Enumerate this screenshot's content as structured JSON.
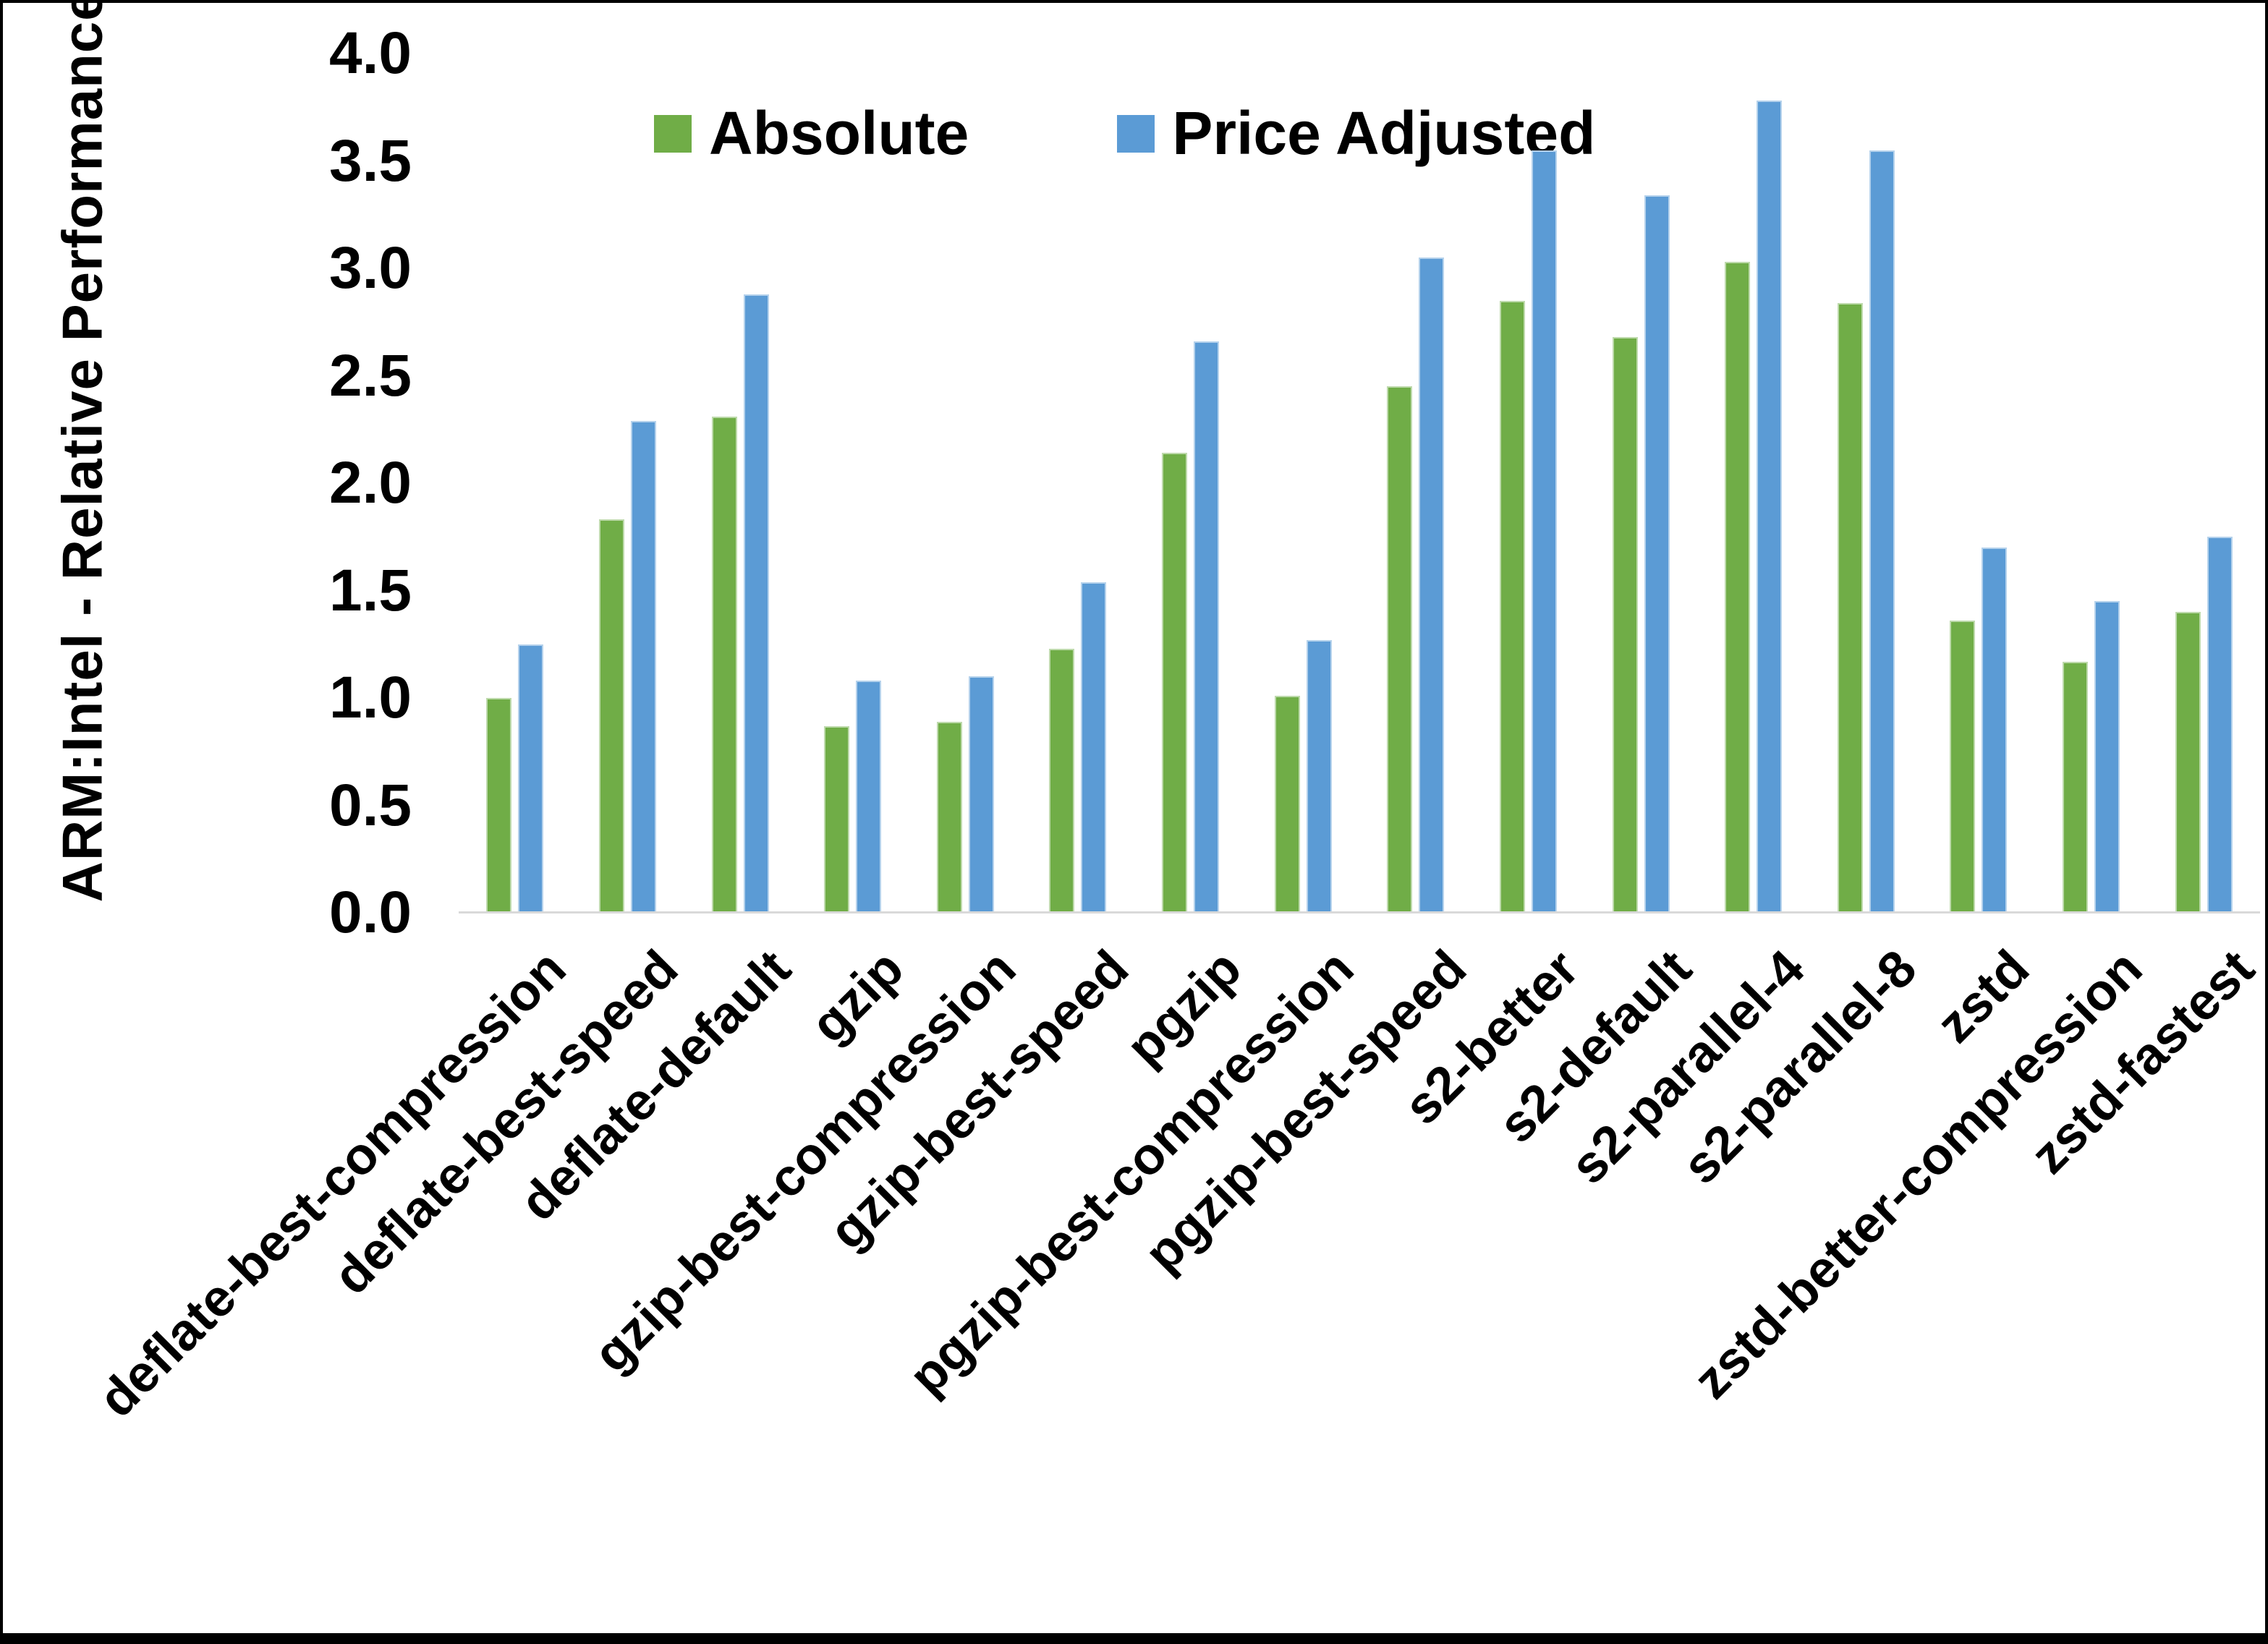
{
  "chart_data": {
    "type": "bar",
    "title": "",
    "ylabel": "ARM:Intel - Relative Performance",
    "xlabel": "",
    "ylim": [
      0.0,
      4.0
    ],
    "ytick_step": 0.5,
    "y_tick_labels": [
      "0.0",
      "0.5",
      "1.0",
      "1.5",
      "2.0",
      "2.5",
      "3.0",
      "3.5",
      "4.0"
    ],
    "grid": false,
    "legend_position": "top",
    "background_color": "#ffffff",
    "axis_line_color": "#d9d9d9",
    "categories": [
      "deflate-best-compression",
      "deflate-best-speed",
      "deflate-default",
      "gzip",
      "gzip-best-compression",
      "gzip-best-speed",
      "pgzip",
      "pgzip-best-compression",
      "pgzip-best-speed",
      "s2-better",
      "s2-default",
      "s2-parallel-4",
      "s2-parallel-8",
      "zstd",
      "zstd-better-compression",
      "zstd-fastest"
    ],
    "series": [
      {
        "name": "Absolute",
        "color": "#70AD47",
        "values": [
          1.0,
          1.83,
          2.31,
          0.87,
          0.89,
          1.23,
          2.14,
          1.01,
          2.45,
          2.85,
          2.68,
          3.03,
          2.84,
          1.36,
          1.17,
          1.4
        ]
      },
      {
        "name": "Price Adjusted",
        "color": "#5B9BD5",
        "values": [
          1.25,
          2.29,
          2.88,
          1.08,
          1.1,
          1.54,
          2.66,
          1.27,
          3.05,
          3.55,
          3.34,
          3.78,
          3.55,
          1.7,
          1.45,
          1.75
        ]
      }
    ]
  },
  "layout_note": ""
}
